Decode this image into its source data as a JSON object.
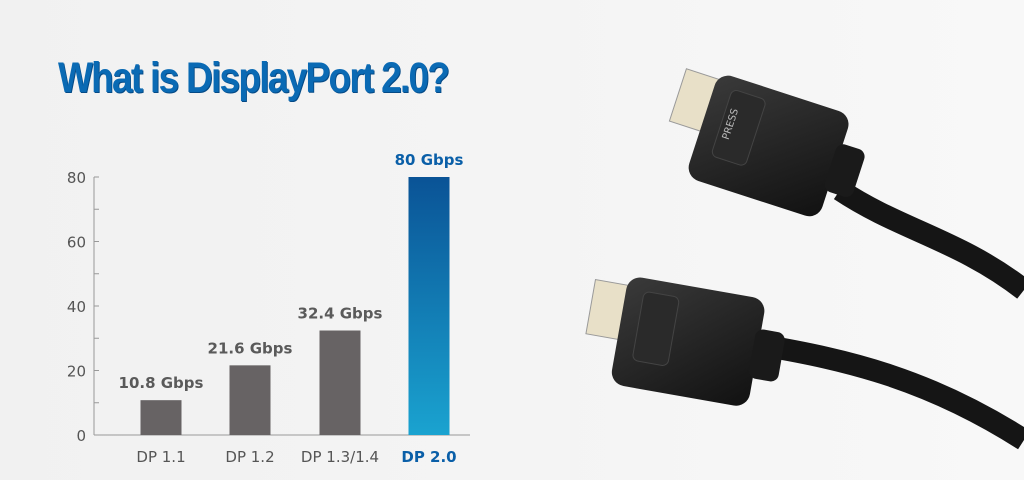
{
  "title": "What is DisplayPort 2.0?",
  "chart_data": {
    "type": "bar",
    "title": "What is DisplayPort 2.0?",
    "categories": [
      "DP 1.1",
      "DP 1.2",
      "DP 1.3/1.4",
      "DP 2.0"
    ],
    "values": [
      10.8,
      21.6,
      32.4,
      80
    ],
    "data_labels": [
      "10.8 Gbps",
      "21.6 Gbps",
      "32.4 Gbps",
      "80 Gbps"
    ],
    "xlabel": "",
    "ylabel": "",
    "ylim": [
      0,
      80
    ],
    "yticks": [
      0,
      20,
      40,
      60,
      80
    ],
    "grid": false,
    "colors": {
      "bar": "#676364",
      "highlight": "#0a5fa8",
      "highlight_bottom": "#1aa0cf",
      "highlight_text": "#0a5fa8"
    }
  },
  "photo": {
    "subject": "two DisplayPort cable connectors",
    "button_text": "PRESS"
  }
}
